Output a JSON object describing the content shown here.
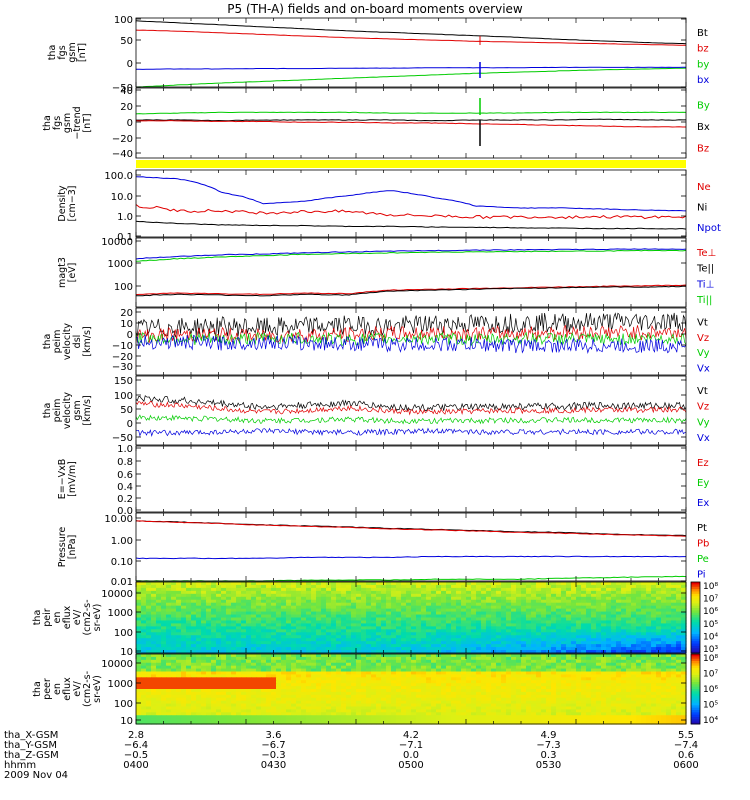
{
  "title": "P5 (TH-A) fields and on-board moments overview",
  "colors": {
    "black": "#000000",
    "red": "#e00000",
    "green": "#00cc00",
    "blue": "#0000dd",
    "yellow": "#ffff00"
  },
  "chart_data": [
    {
      "type": "line",
      "id": "fgs-gsm",
      "ylabel_lines": [
        "tha",
        "fgs",
        "gsm",
        "[nT]"
      ],
      "ticks": [
        "100",
        "50",
        "0",
        "−50"
      ],
      "ylim": [
        -62,
        110
      ],
      "series": [
        {
          "name": "Bt",
          "color": "#000000",
          "values": [
            103,
            98,
            93,
            88,
            83,
            78,
            74,
            70,
            66,
            62,
            57,
            53,
            49,
            46
          ]
        },
        {
          "name": "bz",
          "color": "#e00000",
          "values": [
            80,
            77,
            73,
            69,
            65,
            61,
            58,
            55,
            52,
            50,
            48,
            46,
            44,
            42
          ]
        },
        {
          "name": "by",
          "color": "#00cc00",
          "values": [
            -62,
            -57,
            -52,
            -48,
            -44,
            -40,
            -36,
            -32,
            -28,
            -25,
            -22,
            -19,
            -17,
            -15
          ]
        },
        {
          "name": "bx",
          "color": "#0000dd",
          "values": [
            -18,
            -17,
            -17,
            -16,
            -16,
            -15,
            -15,
            -14,
            -14,
            -14,
            -13,
            -13,
            -13,
            -13
          ]
        }
      ]
    },
    {
      "type": "line",
      "id": "fgs-detrend",
      "ylabel_lines": [
        "tha",
        "fgs",
        "gsm",
        "−trend",
        "[nT]"
      ],
      "ticks": [
        "40",
        "20",
        "0",
        "−20",
        "−40"
      ],
      "ylim": [
        -50,
        42
      ],
      "series": [
        {
          "name": "By",
          "color": "#00cc00",
          "values": [
            8,
            9,
            10,
            10,
            10,
            10,
            9,
            9,
            9,
            9,
            10,
            10,
            10,
            10
          ]
        },
        {
          "name": "Bx",
          "color": "#000000",
          "values": [
            0,
            0,
            -1,
            0,
            0,
            0,
            0,
            -1,
            0,
            0,
            0,
            1,
            0,
            0
          ]
        },
        {
          "name": "Bz",
          "color": "#e00000",
          "values": [
            -1,
            -1,
            -2,
            -2,
            -3,
            -3,
            -4,
            -4,
            -5,
            -6,
            -7,
            -8,
            -9,
            -9
          ]
        }
      ]
    },
    {
      "type": "line",
      "id": "density",
      "scale": "log",
      "ylabel_lines": [
        "Density",
        "[cm−3]"
      ],
      "ticks": [
        "100.0",
        "10.0",
        "1.0",
        "0.1"
      ],
      "ylim": [
        0.1,
        100
      ],
      "series": [
        {
          "name": "Ne",
          "color": "#e00000",
          "values": [
            2.5,
            1.5,
            1.5,
            1.2,
            1.4,
            1.4,
            1.0,
            0.9,
            0.8,
            0.8,
            0.8,
            0.8,
            0.8,
            0.8
          ]
        },
        {
          "name": "Ni",
          "color": "#000000",
          "values": [
            0.5,
            0.4,
            0.35,
            0.33,
            0.32,
            0.3,
            0.3,
            0.28,
            0.27,
            0.26,
            0.25,
            0.24,
            0.24,
            0.23
          ]
        },
        {
          "name": "Npot",
          "color": "#0000dd",
          "values": [
            50,
            40,
            10,
            3,
            4,
            7,
            12,
            6,
            2.5,
            2,
            2,
            1.8,
            1.6,
            1.5
          ]
        }
      ]
    },
    {
      "type": "line",
      "id": "temperature",
      "scale": "log",
      "ylabel_lines": [
        "magt3",
        "[eV]"
      ],
      "ticks": [
        "10000",
        "1000",
        "100"
      ],
      "ylim": [
        30,
        12000
      ],
      "series": [
        {
          "name": "Te⊥",
          "color": "#e00000",
          "values": [
            90,
            100,
            95,
            90,
            100,
            95,
            130,
            140,
            150,
            160,
            170,
            180,
            190,
            200
          ]
        },
        {
          "name": "Te||",
          "color": "#000000",
          "values": [
            80,
            90,
            85,
            80,
            90,
            85,
            120,
            130,
            140,
            150,
            160,
            170,
            170,
            180
          ]
        },
        {
          "name": "Ti⊥",
          "color": "#0000dd",
          "values": [
            2000,
            2400,
            2800,
            3000,
            3300,
            3600,
            3800,
            4000,
            4200,
            4300,
            4400,
            4500,
            4600,
            4600
          ]
        },
        {
          "name": "Ti||",
          "color": "#00cc00",
          "values": [
            1600,
            2000,
            2300,
            2600,
            2900,
            3100,
            3300,
            3500,
            3600,
            3700,
            3800,
            3900,
            4000,
            4000
          ]
        }
      ]
    },
    {
      "type": "line",
      "id": "velocity-1",
      "ylabel_lines": [
        "tha",
        "peim",
        "velocity",
        "dsl",
        "[km/s]"
      ],
      "ticks": [
        "20",
        "10",
        "0",
        "−10",
        "−20",
        "−30"
      ],
      "ylim": [
        -30,
        25
      ],
      "series": [
        {
          "name": "Vt",
          "color": "#000000",
          "values": [
            8,
            9,
            10,
            9,
            10,
            11,
            10,
            12,
            12,
            13,
            13,
            14,
            14,
            14
          ]
        },
        {
          "name": "Vz",
          "color": "#e00000",
          "values": [
            2,
            3,
            3,
            2,
            3,
            3,
            4,
            4,
            4,
            4,
            5,
            5,
            5,
            5
          ]
        },
        {
          "name": "Vy",
          "color": "#00cc00",
          "values": [
            0,
            0,
            -1,
            0,
            0,
            -1,
            0,
            0,
            -1,
            0,
            0,
            -1,
            0,
            0
          ]
        },
        {
          "name": "Vx",
          "color": "#0000dd",
          "values": [
            -3,
            -3,
            -4,
            -3,
            -4,
            -4,
            -5,
            -5,
            -5,
            -6,
            -6,
            -6,
            -6,
            -6
          ]
        }
      ]
    },
    {
      "type": "line",
      "id": "velocity-2",
      "ylabel_lines": [
        "tha",
        "peim",
        "velocity",
        "gsm",
        "[km/s]"
      ],
      "ticks": [
        "150",
        "100",
        "50",
        "0",
        "−50"
      ],
      "ylim": [
        -50,
        150
      ],
      "series": [
        {
          "name": "Vt",
          "color": "#000000",
          "values": [
            85,
            80,
            70,
            60,
            65,
            72,
            60,
            58,
            60,
            62,
            62,
            65,
            64,
            65
          ]
        },
        {
          "name": "Vz",
          "color": "#e00000",
          "values": [
            70,
            65,
            55,
            45,
            50,
            58,
            48,
            45,
            48,
            50,
            50,
            52,
            52,
            52
          ]
        },
        {
          "name": "Vy",
          "color": "#00cc00",
          "values": [
            30,
            28,
            25,
            20,
            22,
            25,
            20,
            20,
            20,
            22,
            22,
            22,
            22,
            22
          ]
        },
        {
          "name": "Vx",
          "color": "#0000dd",
          "values": [
            -15,
            -15,
            -12,
            -10,
            -12,
            -14,
            -12,
            -10,
            -12,
            -12,
            -12,
            -12,
            -12,
            -12
          ]
        }
      ]
    },
    {
      "type": "line",
      "id": "efield",
      "ylabel_lines": [
        "E=−VxB",
        "[mV/m]"
      ],
      "ticks": [
        "1.0",
        "0.8",
        "0.6",
        "0.4",
        "0.2",
        "0.0"
      ],
      "ylim": [
        0,
        1
      ],
      "series": [
        {
          "name": "Ez",
          "color": "#e00000",
          "values": []
        },
        {
          "name": "Ey",
          "color": "#00cc00",
          "values": []
        },
        {
          "name": "Ex",
          "color": "#0000dd",
          "values": []
        }
      ]
    },
    {
      "type": "line",
      "id": "pressure",
      "scale": "log",
      "ylabel_lines": [
        "Pressure",
        "[nPa]"
      ],
      "ticks": [
        "10.00",
        "1.00",
        "0.10",
        "0.01"
      ],
      "ylim": [
        0.01,
        10
      ],
      "series": [
        {
          "name": "Pt",
          "color": "#000000",
          "values": [
            4.5,
            4.0,
            3.5,
            3.0,
            2.7,
            2.4,
            2.1,
            1.9,
            1.7,
            1.5,
            1.4,
            1.2,
            1.1,
            1.0
          ]
        },
        {
          "name": "Pb",
          "color": "#e00000",
          "values": [
            4.4,
            3.9,
            3.4,
            2.9,
            2.6,
            2.3,
            2.0,
            1.8,
            1.6,
            1.4,
            1.3,
            1.15,
            1.05,
            0.95
          ]
        },
        {
          "name": "Pe",
          "color": "#00cc00",
          "values": [
            0.01,
            0.01,
            0.01,
            0.01,
            0.011,
            0.011,
            0.011,
            0.012,
            0.012,
            0.012,
            0.013,
            0.014,
            0.015,
            0.016
          ]
        },
        {
          "name": "Pi",
          "color": "#0000dd",
          "values": [
            0.1,
            0.1,
            0.1,
            0.1,
            0.11,
            0.11,
            0.11,
            0.12,
            0.12,
            0.12,
            0.12,
            0.12,
            0.12,
            0.12
          ]
        }
      ]
    },
    {
      "type": "heatmap",
      "id": "ion-spectrogram",
      "ylabel_lines": [
        "tha",
        "peir",
        "en",
        "eflux",
        "eV/",
        "(cm2-s-",
        "sr-eV)"
      ],
      "ticks": [
        "10000",
        "1000",
        "100",
        "10"
      ],
      "colorbar_ticks": [
        "10⁸",
        "10⁷",
        "10⁶",
        "10⁵",
        "10⁴",
        "10³"
      ]
    },
    {
      "type": "heatmap",
      "id": "electron-spectrogram",
      "ylabel_lines": [
        "tha",
        "peer",
        "en",
        "eflux",
        "eV/",
        "(cm2-s-",
        "sr-eV)"
      ],
      "ticks": [
        "10000",
        "1000",
        "100",
        "10"
      ],
      "colorbar_ticks": [
        "10⁸",
        "10⁷",
        "10⁶",
        "10⁵",
        "10⁴"
      ]
    }
  ],
  "footer": {
    "rows": [
      {
        "label": "tha_X-GSM",
        "values": [
          "2.8",
          "3.6",
          "4.2",
          "4.9",
          "5.5"
        ]
      },
      {
        "label": "tha_Y-GSM",
        "values": [
          "−6.4",
          "−6.7",
          "−7.1",
          "−7.3",
          "−7.4"
        ]
      },
      {
        "label": "tha_Z-GSM",
        "values": [
          "−0.5",
          "−0.3",
          "0.0",
          "0.3",
          "0.6"
        ]
      },
      {
        "label": "hhmm",
        "values": [
          "0400",
          "0430",
          "0500",
          "0530",
          "0600"
        ]
      }
    ],
    "date": "2009 Nov 04"
  }
}
